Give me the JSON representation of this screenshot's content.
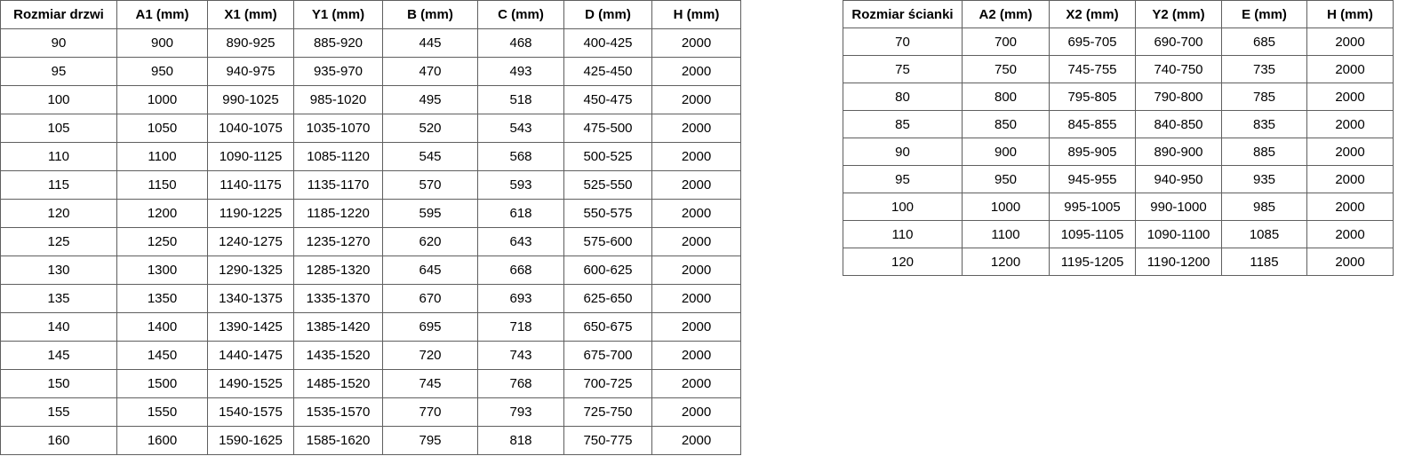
{
  "colors": {
    "border": "#5f5f5f",
    "text": "#000000",
    "background": "#ffffff"
  },
  "left_table": {
    "name": "door-size-table",
    "headers": [
      "Rozmiar drzwi",
      "A1 (mm)",
      "X1 (mm)",
      "Y1 (mm)",
      "B (mm)",
      "C (mm)",
      "D (mm)",
      "H (mm)"
    ],
    "rows": [
      [
        "90",
        "900",
        "890-925",
        "885-920",
        "445",
        "468",
        "400-425",
        "2000"
      ],
      [
        "95",
        "950",
        "940-975",
        "935-970",
        "470",
        "493",
        "425-450",
        "2000"
      ],
      [
        "100",
        "1000",
        "990-1025",
        "985-1020",
        "495",
        "518",
        "450-475",
        "2000"
      ],
      [
        "105",
        "1050",
        "1040-1075",
        "1035-1070",
        "520",
        "543",
        "475-500",
        "2000"
      ],
      [
        "110",
        "1100",
        "1090-1125",
        "1085-1120",
        "545",
        "568",
        "500-525",
        "2000"
      ],
      [
        "115",
        "1150",
        "1140-1175",
        "1135-1170",
        "570",
        "593",
        "525-550",
        "2000"
      ],
      [
        "120",
        "1200",
        "1190-1225",
        "1185-1220",
        "595",
        "618",
        "550-575",
        "2000"
      ],
      [
        "125",
        "1250",
        "1240-1275",
        "1235-1270",
        "620",
        "643",
        "575-600",
        "2000"
      ],
      [
        "130",
        "1300",
        "1290-1325",
        "1285-1320",
        "645",
        "668",
        "600-625",
        "2000"
      ],
      [
        "135",
        "1350",
        "1340-1375",
        "1335-1370",
        "670",
        "693",
        "625-650",
        "2000"
      ],
      [
        "140",
        "1400",
        "1390-1425",
        "1385-1420",
        "695",
        "718",
        "650-675",
        "2000"
      ],
      [
        "145",
        "1450",
        "1440-1475",
        "1435-1520",
        "720",
        "743",
        "675-700",
        "2000"
      ],
      [
        "150",
        "1500",
        "1490-1525",
        "1485-1520",
        "745",
        "768",
        "700-725",
        "2000"
      ],
      [
        "155",
        "1550",
        "1540-1575",
        "1535-1570",
        "770",
        "793",
        "725-750",
        "2000"
      ],
      [
        "160",
        "1600",
        "1590-1625",
        "1585-1620",
        "795",
        "818",
        "750-775",
        "2000"
      ]
    ]
  },
  "right_table": {
    "name": "wall-size-table",
    "headers": [
      "Rozmiar ścianki",
      "A2 (mm)",
      "X2 (mm)",
      "Y2 (mm)",
      "E (mm)",
      "H (mm)"
    ],
    "rows": [
      [
        "70",
        "700",
        "695-705",
        "690-700",
        "685",
        "2000"
      ],
      [
        "75",
        "750",
        "745-755",
        "740-750",
        "735",
        "2000"
      ],
      [
        "80",
        "800",
        "795-805",
        "790-800",
        "785",
        "2000"
      ],
      [
        "85",
        "850",
        "845-855",
        "840-850",
        "835",
        "2000"
      ],
      [
        "90",
        "900",
        "895-905",
        "890-900",
        "885",
        "2000"
      ],
      [
        "95",
        "950",
        "945-955",
        "940-950",
        "935",
        "2000"
      ],
      [
        "100",
        "1000",
        "995-1005",
        "990-1000",
        "985",
        "2000"
      ],
      [
        "110",
        "1100",
        "1095-1105",
        "1090-1100",
        "1085",
        "2000"
      ],
      [
        "120",
        "1200",
        "1195-1205",
        "1190-1200",
        "1185",
        "2000"
      ]
    ]
  }
}
